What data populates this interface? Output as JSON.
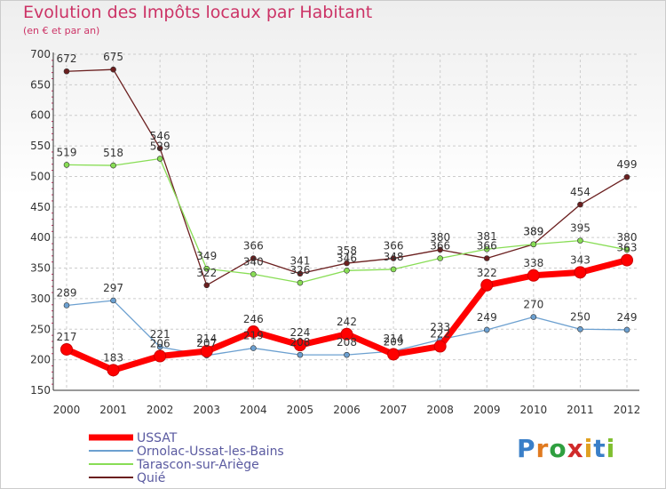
{
  "chart_data": {
    "type": "line",
    "title": "Evolution des Impôts locaux par Habitant",
    "subtitle": "(en € et par an)",
    "xlabel": "",
    "ylabel": "",
    "x": [
      "2000",
      "2001",
      "2002",
      "2003",
      "2004",
      "2005",
      "2006",
      "2007",
      "2008",
      "2009",
      "2010",
      "2011",
      "2012"
    ],
    "ylim": [
      150,
      700
    ],
    "yticks": [
      150,
      200,
      250,
      300,
      350,
      400,
      450,
      500,
      550,
      600,
      650,
      700
    ],
    "series": [
      {
        "name": "USSAT",
        "color": "#ff0000",
        "values": [
          217,
          183,
          206,
          214,
          246,
          224,
          242,
          209,
          222,
          322,
          338,
          343,
          363
        ]
      },
      {
        "name": "Ornolac-Ussat-les-Bains",
        "color": "#6ca0d0",
        "values": [
          289,
          297,
          221,
          207,
          219,
          208,
          208,
          214,
          233,
          249,
          270,
          250,
          249
        ]
      },
      {
        "name": "Tarascon-sur-Ariège",
        "color": "#88dd55",
        "values": [
          519,
          518,
          529,
          349,
          340,
          326,
          346,
          348,
          366,
          381,
          389,
          395,
          380
        ]
      },
      {
        "name": "Quié",
        "color": "#6b1f1f",
        "values": [
          672,
          675,
          546,
          322,
          366,
          341,
          358,
          366,
          380,
          366,
          389,
          454,
          499
        ]
      }
    ],
    "legend_position": "bottom-left",
    "logo_text": "Proxiti"
  }
}
